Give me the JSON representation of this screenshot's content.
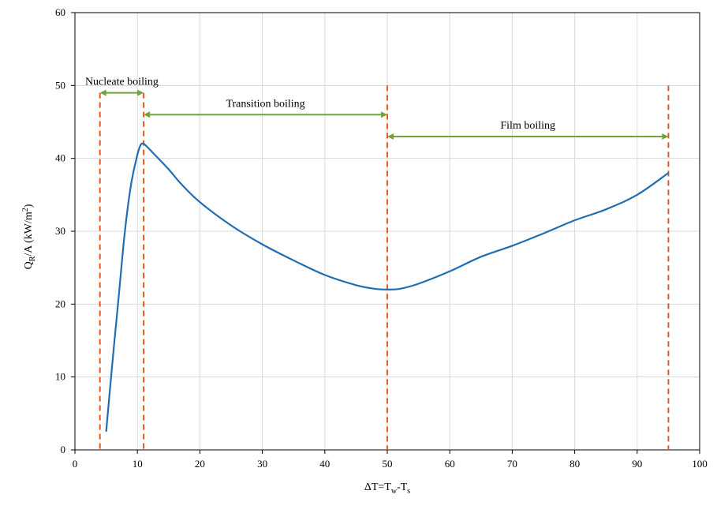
{
  "chart_data": {
    "type": "line",
    "xlabel": {
      "main": "ΔT=T",
      "sub1": "w",
      "mid": "-T",
      "sub2": "s"
    },
    "ylabel": {
      "main": "Q",
      "sub": "R",
      "rest": "/A  (kW/m",
      "sup": "2",
      "end": ")"
    },
    "xlim": [
      0,
      100
    ],
    "ylim": [
      0,
      60
    ],
    "xticks": [
      "0",
      "10",
      "20",
      "30",
      "40",
      "50",
      "60",
      "70",
      "80",
      "90",
      "100"
    ],
    "yticks": [
      "0",
      "10",
      "20",
      "30",
      "40",
      "50",
      "60"
    ],
    "grid": true,
    "series": [
      {
        "color": "#1f6eb4",
        "x": [
          5,
          6,
          7,
          8,
          9,
          10,
          10.5,
          11,
          12,
          13,
          15,
          17,
          20,
          25,
          30,
          35,
          40,
          45,
          48,
          50,
          52,
          55,
          60,
          65,
          70,
          75,
          80,
          85,
          90,
          95
        ],
        "y": [
          2.5,
          12,
          21,
          30,
          36.5,
          40.5,
          41.8,
          42,
          41.2,
          40.3,
          38.5,
          36.5,
          34,
          30.8,
          28.2,
          26,
          24,
          22.6,
          22.1,
          22,
          22.1,
          22.8,
          24.5,
          26.5,
          28,
          29.7,
          31.5,
          33,
          35,
          38
        ]
      }
    ],
    "boundaries": {
      "color": "#e3591e",
      "lines": [
        {
          "x": 4,
          "y_top": 49
        },
        {
          "x": 11,
          "y_top": 49
        },
        {
          "x": 50,
          "y_top": 50
        },
        {
          "x": 95,
          "y_top": 50
        }
      ]
    },
    "regions": {
      "color": "#70a33a",
      "items": [
        {
          "label": "Nucleate boiling",
          "x_from": 4,
          "x_to": 11,
          "y": 49
        },
        {
          "label": "Transition boiling",
          "x_from": 11,
          "x_to": 50,
          "y": 46
        },
        {
          "label": "Film boiling",
          "x_from": 50,
          "x_to": 95,
          "y": 43
        }
      ]
    }
  }
}
